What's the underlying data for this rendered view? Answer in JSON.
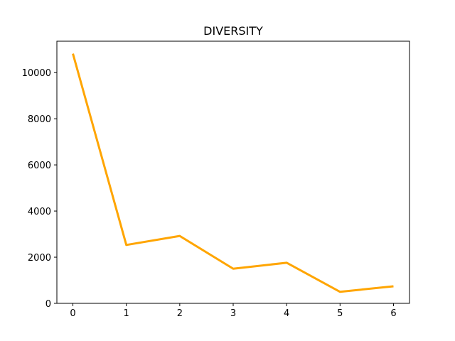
{
  "chart_data": {
    "type": "line",
    "title": "DIVERSITY",
    "xlabel": "",
    "ylabel": "",
    "x": [
      0,
      1,
      2,
      3,
      4,
      5,
      6
    ],
    "series": [
      {
        "values": [
          10820,
          2530,
          2920,
          1500,
          1760,
          500,
          740
        ],
        "color": "#ffa500"
      }
    ],
    "xticks": [
      0,
      1,
      2,
      3,
      4,
      5,
      6
    ],
    "yticks": [
      0,
      2000,
      4000,
      6000,
      8000,
      10000
    ],
    "xlim": [
      -0.3,
      6.3
    ],
    "ylim": [
      0,
      11360
    ],
    "grid": false,
    "legend": "none"
  }
}
